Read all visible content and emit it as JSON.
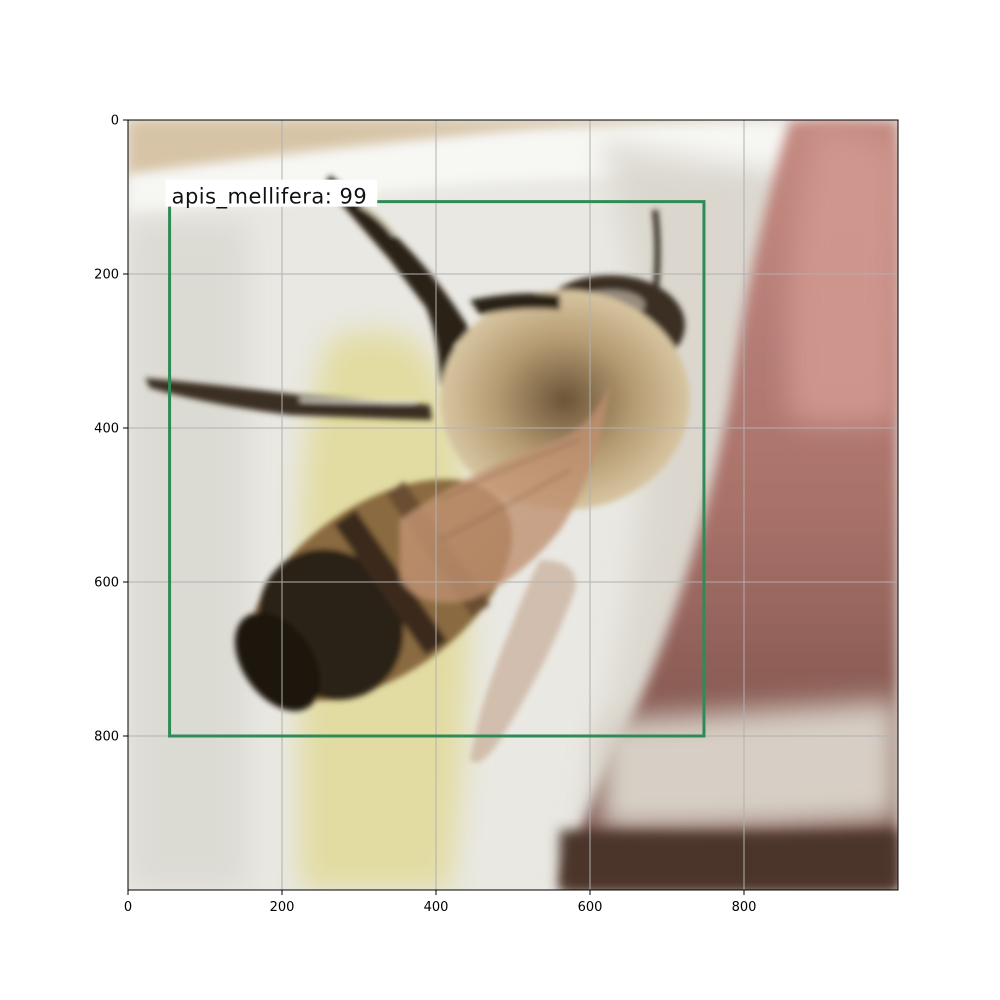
{
  "figure": {
    "x_ticks": [
      "0",
      "200",
      "400",
      "600",
      "800"
    ],
    "y_ticks": [
      "0",
      "200",
      "400",
      "600",
      "800"
    ],
    "grid": true,
    "grid_color": "#b0b0b0",
    "image_extent": {
      "x": [
        0,
        1000
      ],
      "y": [
        0,
        1000
      ]
    }
  },
  "detection": {
    "label": "apis_mellifera: 99",
    "box": {
      "x1": 54,
      "y1": 106,
      "x2": 748,
      "y2": 800
    },
    "color": "#2e8b57"
  },
  "photo": {
    "subject_icon": "honeybee-photo",
    "background_colors": {
      "cup_white": "#ecebe5",
      "cup_yellow": "#e4dfa8",
      "finger_pink": "#b58078",
      "finger_dark": "#6e4a42"
    }
  }
}
